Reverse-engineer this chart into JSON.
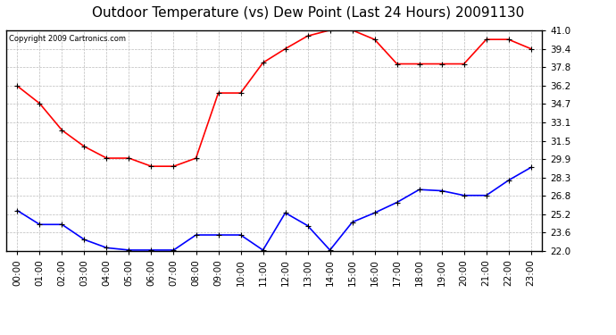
{
  "title": "Outdoor Temperature (vs) Dew Point (Last 24 Hours) 20091130",
  "copyright": "Copyright 2009 Cartronics.com",
  "hours": [
    "00:00",
    "01:00",
    "02:00",
    "03:00",
    "04:00",
    "05:00",
    "06:00",
    "07:00",
    "08:00",
    "09:00",
    "10:00",
    "11:00",
    "12:00",
    "13:00",
    "14:00",
    "15:00",
    "16:00",
    "17:00",
    "18:00",
    "19:00",
    "20:00",
    "21:00",
    "22:00",
    "23:00"
  ],
  "temp": [
    36.2,
    34.7,
    32.4,
    31.0,
    30.0,
    30.0,
    29.3,
    29.3,
    30.0,
    35.6,
    35.6,
    38.2,
    39.4,
    40.5,
    41.0,
    41.0,
    40.2,
    38.1,
    38.1,
    38.1,
    38.1,
    40.2,
    40.2,
    39.4
  ],
  "dew": [
    25.5,
    24.3,
    24.3,
    23.0,
    22.3,
    22.1,
    22.1,
    22.1,
    23.4,
    23.4,
    23.4,
    22.1,
    25.3,
    24.2,
    22.1,
    24.5,
    25.3,
    26.2,
    27.3,
    27.2,
    26.8,
    26.8,
    28.1,
    29.2
  ],
  "temp_color": "#ff0000",
  "dew_color": "#0000ff",
  "bg_color": "#ffffff",
  "plot_bg": "#ffffff",
  "grid_color": "#bbbbbb",
  "marker": "+",
  "marker_color": "#000000",
  "ymin": 22.0,
  "ymax": 41.0,
  "yticks": [
    22.0,
    23.6,
    25.2,
    26.8,
    28.3,
    29.9,
    31.5,
    33.1,
    34.7,
    36.2,
    37.8,
    39.4,
    41.0
  ],
  "title_fontsize": 11,
  "tick_fontsize": 7.5,
  "copyright_fontsize": 6
}
